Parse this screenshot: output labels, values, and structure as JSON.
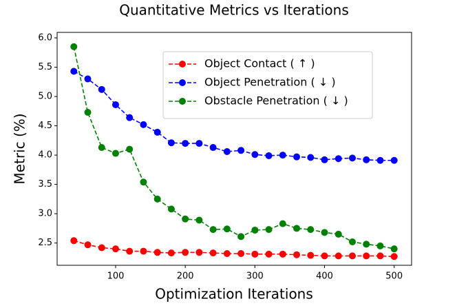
{
  "chart_data": {
    "type": "line",
    "title": "Quantitative Metrics vs Iterations",
    "x_label": "Optimization Iterations",
    "y_label": "Metric (%)",
    "x": [
      40,
      60,
      80,
      100,
      120,
      140,
      160,
      180,
      200,
      220,
      240,
      260,
      280,
      300,
      320,
      340,
      360,
      380,
      400,
      420,
      440,
      460,
      480,
      500
    ],
    "series": [
      {
        "name": "Object Contact ( ↑ )",
        "color": "#ff0000",
        "values": [
          2.54,
          2.47,
          2.42,
          2.4,
          2.36,
          2.36,
          2.34,
          2.33,
          2.34,
          2.34,
          2.33,
          2.32,
          2.32,
          2.31,
          2.31,
          2.31,
          2.3,
          2.29,
          2.28,
          2.28,
          2.28,
          2.28,
          2.28,
          2.27
        ]
      },
      {
        "name": "Object Penetration ( ↓ )",
        "color": "#0000ff",
        "values": [
          5.43,
          5.3,
          5.12,
          4.86,
          4.64,
          4.52,
          4.39,
          4.21,
          4.2,
          4.2,
          4.13,
          4.06,
          4.08,
          4.01,
          3.99,
          4.0,
          3.97,
          3.96,
          3.92,
          3.94,
          3.95,
          3.92,
          3.91,
          3.91
        ]
      },
      {
        "name": "Obstacle Penetration ( ↓ )",
        "color": "#008000",
        "values": [
          5.85,
          4.73,
          4.13,
          4.03,
          4.1,
          3.54,
          3.25,
          3.08,
          2.91,
          2.89,
          2.73,
          2.74,
          2.61,
          2.72,
          2.73,
          2.83,
          2.75,
          2.73,
          2.68,
          2.65,
          2.52,
          2.48,
          2.45,
          2.4
        ]
      }
    ],
    "xlim": [
      16,
      525
    ],
    "ylim": [
      2.12,
      6.094
    ],
    "xticks": [
      100,
      200,
      300,
      400,
      500
    ],
    "yticks": [
      {
        "value": 2.5,
        "label": "2.5"
      },
      {
        "value": 3.0,
        "label": "3.0"
      },
      {
        "value": 3.5,
        "label": "3.5"
      },
      {
        "value": 4.0,
        "label": "4.0"
      },
      {
        "value": 4.5,
        "label": "4.5"
      },
      {
        "value": 5.0,
        "label": "5.0"
      },
      {
        "value": 5.5,
        "label": "5.5"
      },
      {
        "value": 6.0,
        "label": "6.0"
      }
    ],
    "legend": "upper right",
    "line_style": "dashed",
    "marker": "circle"
  }
}
